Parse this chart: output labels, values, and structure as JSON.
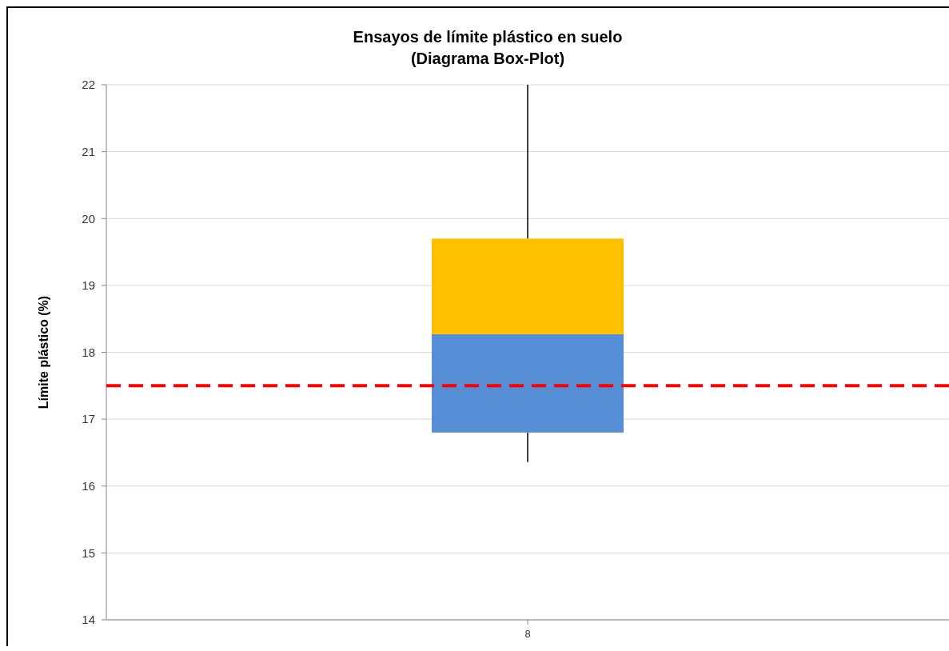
{
  "chart_data": {
    "type": "box",
    "title": "Ensayos de límite plástico en suelo\n(Diagrama Box-Plot)",
    "ylabel": "Límite plástico (%)",
    "categories": [
      "8"
    ],
    "colors": [
      "#ffc000"
    ],
    "series": [
      {
        "color": "#558ed5",
        "boxes": [
          {
            "low": 16.36,
            "q1": 16.8,
            "median": 18.27,
            "q3": 19.7,
            "high": 22
          }
        ]
      }
    ],
    "ylim": [
      14,
      22
    ],
    "yticks": [
      14,
      15,
      16,
      17,
      18,
      19,
      20,
      21,
      22
    ],
    "grid": "y",
    "ref_lines": [
      {
        "axis": "y",
        "value": 17.5,
        "color": "#ff0000",
        "line_style": "dashed"
      }
    ]
  }
}
